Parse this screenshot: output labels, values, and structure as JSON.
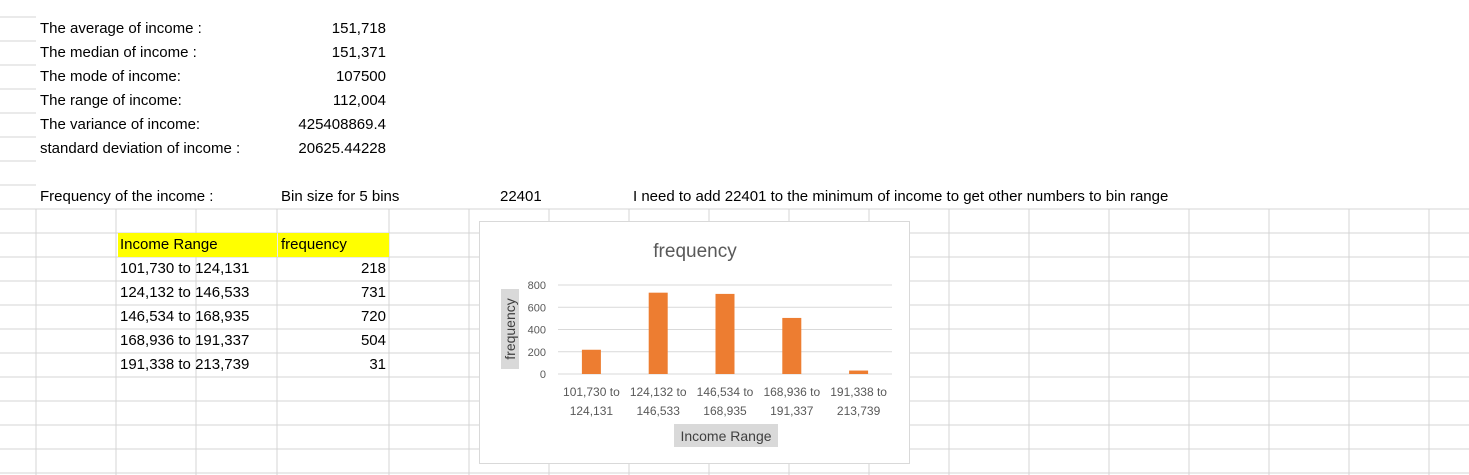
{
  "stats": [
    {
      "label": "The average of income :",
      "value": "151,718"
    },
    {
      "label": "The median of income :",
      "value": "151,371"
    },
    {
      "label": "The mode of income:",
      "value": "107500"
    },
    {
      "label": "The range of income:",
      "value": "112,004"
    },
    {
      "label": "The variance of income:",
      "value": "425408869.4"
    },
    {
      "label": "standard deviation of income :",
      "value": "20625.44228"
    }
  ],
  "frequency_row": {
    "label": "Frequency of the income :",
    "bin_label": "Bin size for 5 bins",
    "bin_value": "22401",
    "note": "I need to add 22401 to the minimum of income to get other numbers to bin range"
  },
  "table": {
    "headers": [
      "Income Range",
      "frequency"
    ],
    "header_bg": "#ffff00",
    "rows": [
      [
        "101,730 to 124,131",
        "218"
      ],
      [
        "124,132 to 146,533",
        "731"
      ],
      [
        "146,534 to 168,935",
        "720"
      ],
      [
        "168,936 to 191,337",
        "504"
      ],
      [
        "191,338 to 213,739",
        "31"
      ]
    ]
  },
  "chart_data": {
    "type": "bar",
    "title": "frequency",
    "xlabel": "Income Range",
    "ylabel": "frequency",
    "categories": [
      [
        "101,730 to",
        "124,131"
      ],
      [
        "124,132 to",
        "146,533"
      ],
      [
        "146,534 to",
        "168,935"
      ],
      [
        "168,936 to",
        "191,337"
      ],
      [
        "191,338 to",
        "213,739"
      ]
    ],
    "values": [
      218,
      731,
      720,
      504,
      31
    ],
    "yticks": [
      0,
      200,
      400,
      600,
      800
    ],
    "ylim": [
      0,
      800
    ],
    "grid": true,
    "legend": "none",
    "bar_color": "#ed7d31"
  }
}
